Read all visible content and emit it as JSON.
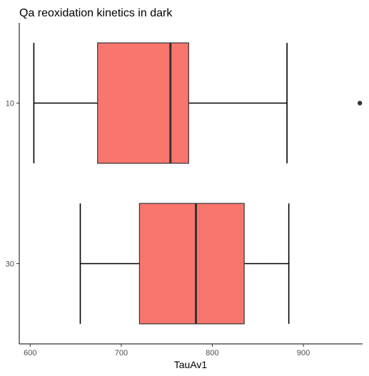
{
  "chart_data": {
    "type": "boxplot",
    "orientation": "horizontal",
    "title": "Qa reoxidation kinetics in dark",
    "xlabel": "TauAv1",
    "ylabel": "",
    "xlim": [
      588,
      965
    ],
    "x_ticks": [
      600,
      700,
      800,
      900
    ],
    "x_tick_labels": [
      "600",
      "700",
      "800",
      "900"
    ],
    "categories": [
      "10",
      "30"
    ],
    "fill_color": "#f8766d",
    "line_color": "#333333",
    "grid": false,
    "legend": "none",
    "boxes": [
      {
        "category": "10",
        "whisker_low": 604,
        "q1": 674,
        "median": 754,
        "q3": 774,
        "whisker_high": 882,
        "outliers": [
          962
        ]
      },
      {
        "category": "30",
        "whisker_low": 655,
        "q1": 720,
        "median": 782,
        "q3": 835,
        "whisker_high": 884,
        "outliers": []
      }
    ]
  }
}
